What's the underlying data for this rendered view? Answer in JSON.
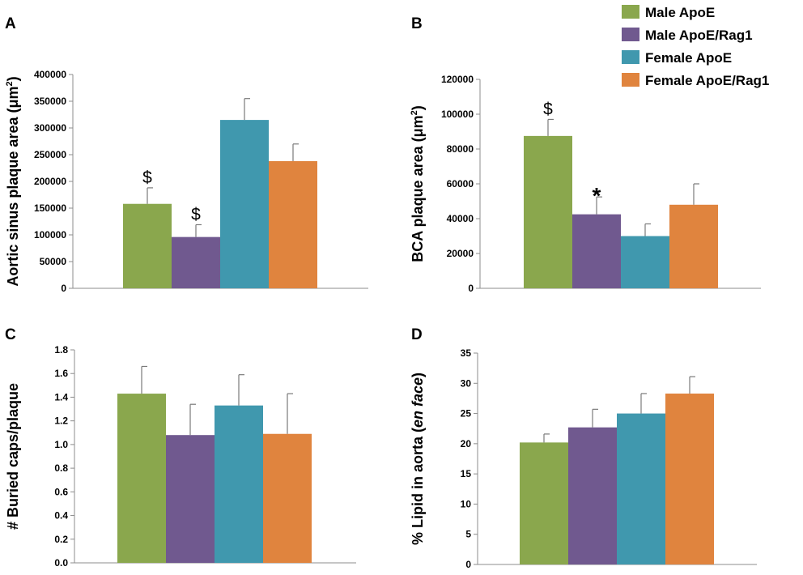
{
  "colors": {
    "male_apoe": "#8aa74d",
    "male_apoe_rag1": "#70598f",
    "female_apoe": "#4098ae",
    "female_apoe_rag1": "#e0843e",
    "axis": "#8c8c8c"
  },
  "legend": [
    "Male ApoE",
    "Male ApoE/Rag1",
    "Female ApoE",
    "Female ApoE/Rag1"
  ],
  "chart_data": [
    {
      "type": "bar",
      "panel": "A",
      "ylabel_main": "Aortic sinus plaque area (μm",
      "ylabel_sup": "2",
      "ylabel_tail": ")",
      "ylabel_italic": "",
      "categories": [
        "Male ApoE",
        "Male ApoE/Rag1",
        "Female ApoE",
        "Female ApoE/Rag1"
      ],
      "values": [
        158000,
        96000,
        315000,
        238000
      ],
      "errors": [
        30000,
        23000,
        40000,
        32000
      ],
      "annotations": [
        "$",
        "$",
        "",
        ""
      ],
      "ylim": [
        0,
        400000
      ],
      "yticks": [
        0,
        50000,
        100000,
        150000,
        200000,
        250000,
        300000,
        350000,
        400000
      ],
      "ytick_labels": [
        "0",
        "50000",
        "100000",
        "150000",
        "200000",
        "250000",
        "300000",
        "350000",
        "400000"
      ]
    },
    {
      "type": "bar",
      "panel": "B",
      "ylabel_main": "BCA plaque area (μm",
      "ylabel_sup": "2",
      "ylabel_tail": ")",
      "ylabel_italic": "",
      "categories": [
        "Male ApoE",
        "Male ApoE/Rag1",
        "Female ApoE",
        "Female ApoE/Rag1"
      ],
      "values": [
        87500,
        42500,
        30000,
        48000
      ],
      "errors": [
        9500,
        10000,
        7000,
        12000
      ],
      "annotations": [
        "$",
        "*",
        "",
        ""
      ],
      "ylim": [
        0,
        120000
      ],
      "yticks": [
        0,
        20000,
        40000,
        60000,
        80000,
        100000,
        120000
      ],
      "ytick_labels": [
        "0",
        "20000",
        "40000",
        "60000",
        "80000",
        "100000",
        "120000"
      ]
    },
    {
      "type": "bar",
      "panel": "C",
      "ylabel_main": "# Buried caps/plaque",
      "ylabel_sup": "",
      "ylabel_tail": "",
      "ylabel_italic": "",
      "categories": [
        "Male ApoE",
        "Male ApoE/Rag1",
        "Female ApoE",
        "Female ApoE/Rag1"
      ],
      "values": [
        1.43,
        1.08,
        1.33,
        1.09
      ],
      "errors": [
        0.23,
        0.26,
        0.26,
        0.34
      ],
      "annotations": [
        "",
        "",
        "",
        ""
      ],
      "ylim": [
        0,
        1.8
      ],
      "yticks": [
        0,
        0.2,
        0.4,
        0.6,
        0.8,
        1.0,
        1.2,
        1.4,
        1.6,
        1.8
      ],
      "ytick_labels": [
        "0.0",
        "0.2",
        "0.4",
        "0.6",
        "0.8",
        "1.0",
        "1.2",
        "1.4",
        "1.6",
        "1.8"
      ]
    },
    {
      "type": "bar",
      "panel": "D",
      "ylabel_main": "% Lipid in aorta (",
      "ylabel_sup": "",
      "ylabel_tail": ")",
      "ylabel_italic": "en face",
      "categories": [
        "Male ApoE",
        "Male ApoE/Rag1",
        "Female ApoE",
        "Female ApoE/Rag1"
      ],
      "values": [
        20.2,
        22.7,
        25.0,
        28.3
      ],
      "errors": [
        1.4,
        3.0,
        3.3,
        2.8
      ],
      "annotations": [
        "",
        "",
        "",
        ""
      ],
      "ylim": [
        0,
        35
      ],
      "yticks": [
        0,
        5,
        10,
        15,
        20,
        25,
        30,
        35
      ],
      "ytick_labels": [
        "0",
        "5",
        "10",
        "15",
        "20",
        "25",
        "30",
        "35"
      ]
    }
  ]
}
